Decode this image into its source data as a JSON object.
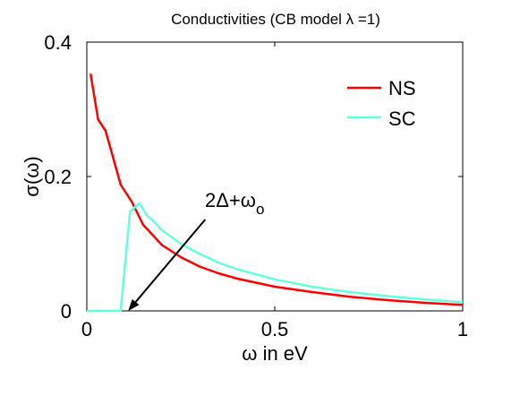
{
  "chart_data": {
    "type": "line",
    "title": "Conductivities (CB model λ =1)",
    "xlabel": "ω in eV",
    "ylabel": "σ(ω)",
    "xlim": [
      0,
      1
    ],
    "ylim": [
      0,
      0.4
    ],
    "x_ticks": [
      0,
      0.5,
      1
    ],
    "x_tick_labels": [
      "0",
      "0.5",
      "1"
    ],
    "y_ticks": [
      0,
      0.2,
      0.4
    ],
    "y_tick_labels": [
      "0",
      "0.2",
      "0.4"
    ],
    "grid": false,
    "legend_position": "top-right",
    "series": [
      {
        "name": "NS",
        "color": "#ff0000",
        "points": [
          [
            0.01,
            0.353
          ],
          [
            0.03,
            0.285
          ],
          [
            0.05,
            0.268
          ],
          [
            0.07,
            0.228
          ],
          [
            0.09,
            0.188
          ],
          [
            0.12,
            0.162
          ],
          [
            0.15,
            0.128
          ],
          [
            0.2,
            0.098
          ],
          [
            0.25,
            0.08
          ],
          [
            0.3,
            0.066
          ],
          [
            0.35,
            0.056
          ],
          [
            0.4,
            0.048
          ],
          [
            0.5,
            0.036
          ],
          [
            0.6,
            0.028
          ],
          [
            0.7,
            0.021
          ],
          [
            0.8,
            0.016
          ],
          [
            0.9,
            0.012
          ],
          [
            1.0,
            0.009
          ]
        ]
      },
      {
        "name": "SC",
        "color": "#66ffdd",
        "points": [
          [
            0.0,
            0.0
          ],
          [
            0.09,
            0.0
          ],
          [
            0.115,
            0.148
          ],
          [
            0.14,
            0.16
          ],
          [
            0.16,
            0.142
          ],
          [
            0.18,
            0.132
          ],
          [
            0.2,
            0.12
          ],
          [
            0.25,
            0.1
          ],
          [
            0.3,
            0.085
          ],
          [
            0.35,
            0.072
          ],
          [
            0.4,
            0.062
          ],
          [
            0.5,
            0.047
          ],
          [
            0.6,
            0.036
          ],
          [
            0.7,
            0.028
          ],
          [
            0.8,
            0.022
          ],
          [
            0.9,
            0.017
          ],
          [
            1.0,
            0.013
          ]
        ]
      }
    ],
    "annotation": {
      "text_main": "2Δ+ω",
      "text_sub": "o",
      "arrow_start": [
        0.315,
        0.136
      ],
      "arrow_tip": [
        0.11,
        0.0
      ]
    }
  },
  "colors": {
    "axis": "#000000",
    "background": "#ffffff"
  }
}
